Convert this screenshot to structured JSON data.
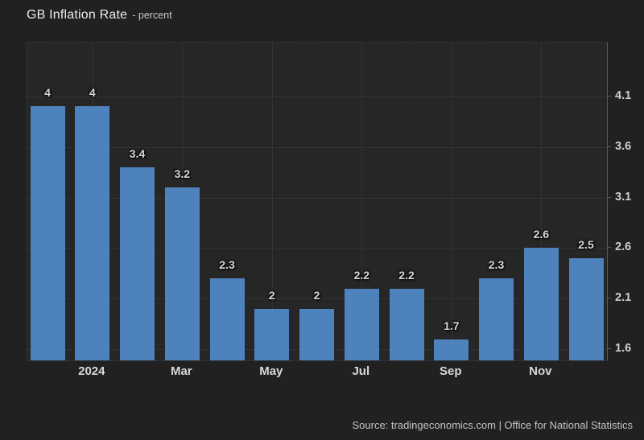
{
  "header": {
    "title": "GB Inflation Rate",
    "subtitle": "- percent"
  },
  "footer": {
    "source": "Source: tradingeconomics.com | Office for National Statistics"
  },
  "chart_data": {
    "type": "bar",
    "title": "GB Inflation Rate",
    "subtitle_unit": "percent",
    "xlabel": "",
    "ylabel": "",
    "values": [
      4,
      4,
      3.4,
      3.2,
      2.3,
      2,
      2,
      2.2,
      2.2,
      1.7,
      2.3,
      2.6,
      2.5
    ],
    "bar_labels": [
      "4",
      "4",
      "3.4",
      "3.2",
      "2.3",
      "2",
      "2",
      "2.2",
      "2.2",
      "1.7",
      "2.3",
      "2.6",
      "2.5"
    ],
    "x_tick_labels": [
      "2024",
      "Mar",
      "May",
      "Jul",
      "Sep",
      "Nov"
    ],
    "x_tick_bar_indexes": [
      1,
      3,
      5,
      7,
      9,
      11
    ],
    "y_ticks": [
      4.1,
      3.6,
      3.1,
      2.6,
      2.1,
      1.6
    ],
    "y_tick_labels": [
      "4.1",
      "3.6",
      "3.1",
      "2.6",
      "2.1",
      "1.6"
    ],
    "ylim": [
      1.49,
      4.63
    ],
    "grid": "dotted",
    "legend": "none",
    "bar_color": "#4e82bc",
    "background_color": "#262626",
    "page_background_color": "#212121",
    "gridline_color": "#3f3f3f",
    "label_color": "#d8d8d8"
  }
}
